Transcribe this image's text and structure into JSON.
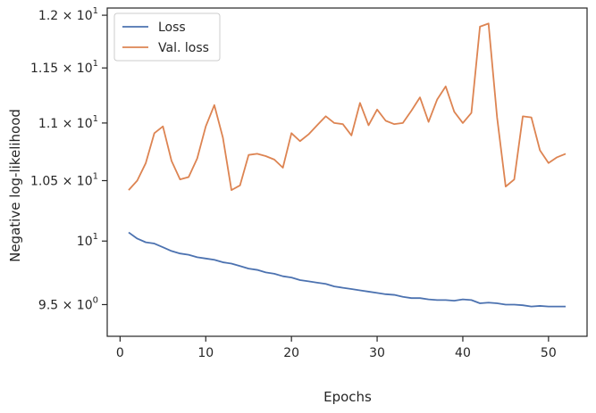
{
  "chart_data": {
    "type": "line",
    "xlabel": "Epochs",
    "ylabel": "Negative log-likelihood",
    "y_scale": "log",
    "xlim": [
      -1.5,
      54.5
    ],
    "ylim": [
      9.26,
      12.07
    ],
    "grid": false,
    "legend_position": "top-left",
    "x_ticks": [
      {
        "value": 0,
        "label": "0"
      },
      {
        "value": 10,
        "label": "10"
      },
      {
        "value": 20,
        "label": "20"
      },
      {
        "value": 30,
        "label": "30"
      },
      {
        "value": 40,
        "label": "40"
      },
      {
        "value": 50,
        "label": "50"
      }
    ],
    "y_ticks": [
      {
        "value": 9.5,
        "base": "9.5",
        "times": "× 10",
        "exp": "0"
      },
      {
        "value": 10,
        "base": "",
        "times": "10",
        "exp": "1"
      },
      {
        "value": 10.5,
        "base": "1.05",
        "times": "× 10",
        "exp": "1"
      },
      {
        "value": 11,
        "base": "1.1",
        "times": "× 10",
        "exp": "1"
      },
      {
        "value": 11.5,
        "base": "1.15",
        "times": "× 10",
        "exp": "1"
      },
      {
        "value": 12,
        "base": "1.2",
        "times": "× 10",
        "exp": "1"
      }
    ],
    "x": [
      1,
      2,
      3,
      4,
      5,
      6,
      7,
      8,
      9,
      10,
      11,
      12,
      13,
      14,
      15,
      16,
      17,
      18,
      19,
      20,
      21,
      22,
      23,
      24,
      25,
      26,
      27,
      28,
      29,
      30,
      31,
      32,
      33,
      34,
      35,
      36,
      37,
      38,
      39,
      40,
      41,
      42,
      43,
      44,
      45,
      46,
      47,
      48,
      49,
      50,
      51,
      52
    ],
    "series": [
      {
        "name": "Loss",
        "color": "#4c72b0",
        "values": [
          10.07,
          10.02,
          9.99,
          9.98,
          9.95,
          9.92,
          9.9,
          9.89,
          9.87,
          9.86,
          9.85,
          9.83,
          9.82,
          9.8,
          9.78,
          9.77,
          9.75,
          9.74,
          9.72,
          9.71,
          9.69,
          9.68,
          9.67,
          9.66,
          9.64,
          9.63,
          9.62,
          9.61,
          9.6,
          9.59,
          9.58,
          9.575,
          9.56,
          9.55,
          9.55,
          9.54,
          9.535,
          9.535,
          9.53,
          9.54,
          9.535,
          9.51,
          9.515,
          9.51,
          9.5,
          9.5,
          9.495,
          9.485,
          9.49,
          9.485,
          9.485,
          9.485
        ]
      },
      {
        "name": "Val. loss",
        "color": "#dd8452",
        "values": [
          10.42,
          10.5,
          10.65,
          10.91,
          10.97,
          10.67,
          10.51,
          10.53,
          10.69,
          10.97,
          11.16,
          10.87,
          10.42,
          10.46,
          10.72,
          10.73,
          10.71,
          10.68,
          10.61,
          10.91,
          10.84,
          10.9,
          10.98,
          11.06,
          11.0,
          10.99,
          10.89,
          11.18,
          10.98,
          11.12,
          11.02,
          10.99,
          11.0,
          11.11,
          11.23,
          11.01,
          11.21,
          11.33,
          11.1,
          11.0,
          11.09,
          11.89,
          11.92,
          11.05,
          10.45,
          10.51,
          11.06,
          11.05,
          10.76,
          10.65,
          10.7,
          10.73
        ]
      }
    ]
  }
}
